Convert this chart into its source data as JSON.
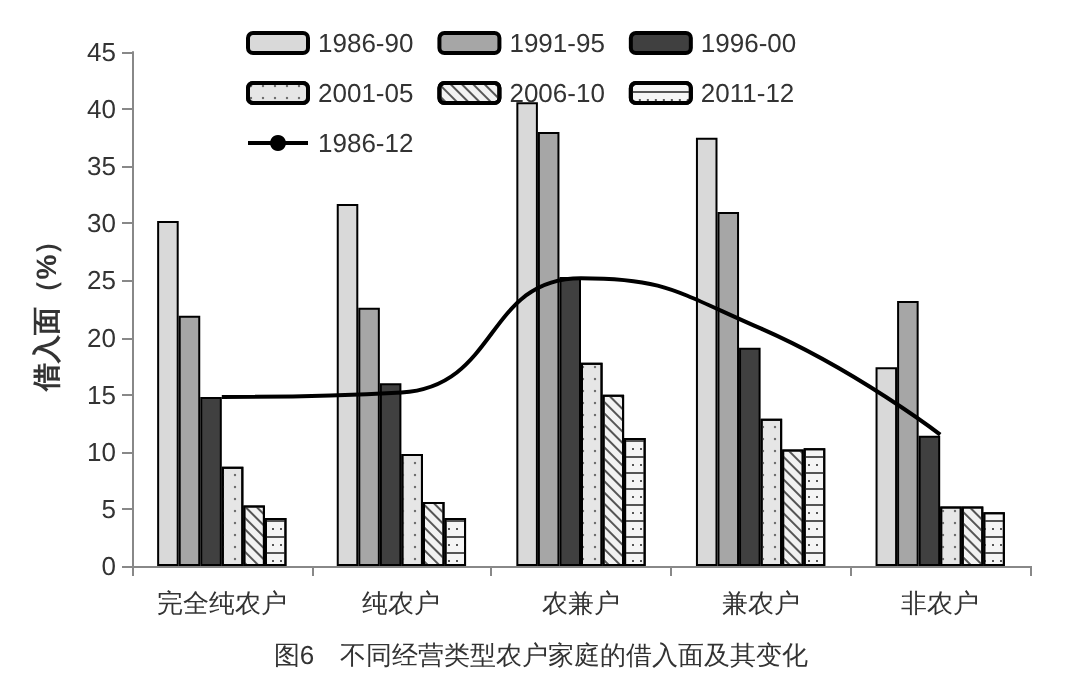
{
  "chart_data": {
    "type": "bar",
    "title": "图6　不同经营类型农户家庭的借入面及其变化",
    "ylabel": "借入面（%）",
    "categories": [
      "完全纯农户",
      "纯农户",
      "农兼户",
      "兼农户",
      "非农户"
    ],
    "series": [
      {
        "name": "1986-90",
        "color": "#d9d9d9",
        "values": [
          30.2,
          31.7,
          40.6,
          37.5,
          17.4
        ]
      },
      {
        "name": "1991-95",
        "color": "#a6a6a6",
        "values": [
          21.9,
          22.6,
          38.0,
          31.0,
          23.2
        ]
      },
      {
        "name": "1996-00",
        "color": "#404040",
        "values": [
          14.8,
          16.0,
          25.3,
          19.1,
          11.4
        ]
      },
      {
        "name": "2001-05",
        "color": "#e6e6e6",
        "values": [
          8.7,
          9.8,
          17.8,
          12.9,
          5.2
        ]
      },
      {
        "name": "2006-10",
        "color": "#f2f2f2",
        "values": [
          5.3,
          5.6,
          15.0,
          10.2,
          5.2
        ]
      },
      {
        "name": "2011-12",
        "color": "#f5f5f5",
        "values": [
          4.2,
          4.2,
          11.2,
          10.3,
          4.7
        ]
      },
      {
        "name": "1986-12",
        "type": "line",
        "color": "#000000",
        "values": [
          14.8,
          15.2,
          25.2,
          20.8,
          11.5
        ]
      }
    ],
    "ylim": [
      0,
      45
    ],
    "yticks": [
      0,
      5,
      10,
      15,
      20,
      25,
      30,
      35,
      40,
      45
    ],
    "grid": false,
    "legend": "top",
    "marker": "none",
    "line_style": "solid"
  }
}
